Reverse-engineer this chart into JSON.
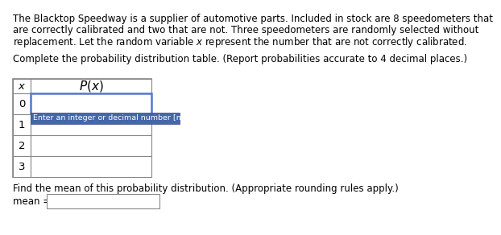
{
  "para_line1": "The Blacktop Speedway is a supplier of automotive parts. Included in stock are 8 speedometers that",
  "para_line2": "are correctly calibrated and two that are not. Three speedometers are randomly selected without",
  "para_line3": "replacement. Let the random variable $x$ represent the number that are not correctly calibrated.",
  "instruction": "Complete the probability distribution table. (Report probabilities accurate to 4 decimal places.)",
  "x_values": [
    "0",
    "1",
    "2",
    "3"
  ],
  "tooltip_text": "Enter an integer or decimal number [more..]",
  "mean_label": "Find the mean of this probability distribution. (Appropriate rounding rules apply.)",
  "mean_prefix": "mean = ",
  "bg_color": "#ffffff",
  "border_color": "#888888",
  "cell_fill": "#ffffff",
  "input_cell_border_color": "#5577cc",
  "tooltip_bg": "#4466aa",
  "tooltip_text_color": "#ffffff",
  "text_color": "#000000",
  "font_size_body": 8.5,
  "font_size_table": 9.5,
  "font_size_tooltip": 6.8
}
